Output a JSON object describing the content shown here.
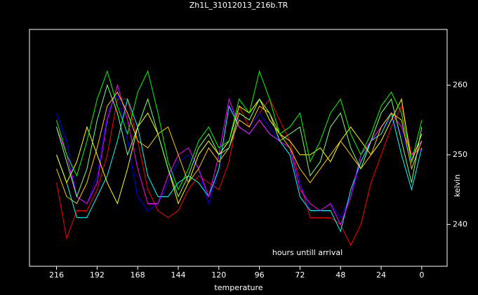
{
  "chart_data": {
    "type": "line",
    "title": "Zh1L_31012013_216b.TR",
    "xlabel": "temperature",
    "ylabel": "kelvin",
    "annotation": "hours untill arrival",
    "x": [
      216,
      210,
      204,
      198,
      192,
      186,
      180,
      174,
      168,
      162,
      156,
      150,
      144,
      138,
      132,
      126,
      120,
      114,
      108,
      102,
      96,
      90,
      84,
      78,
      72,
      66,
      60,
      54,
      48,
      42,
      36,
      30,
      24,
      18,
      12,
      6,
      0
    ],
    "xlim": [
      232,
      -15
    ],
    "xticks": [
      216,
      192,
      168,
      144,
      120,
      96,
      72,
      48,
      24,
      0
    ],
    "ylim": [
      234,
      268
    ],
    "yticks": [
      240,
      250,
      260
    ],
    "series": [
      {
        "color": "#ff0000",
        "values": [
          246,
          238,
          242,
          242,
          245,
          250,
          258,
          258,
          252,
          245,
          242,
          241,
          242,
          245,
          247,
          246,
          245,
          249,
          257,
          254,
          256,
          258,
          255,
          252,
          246,
          241,
          241,
          241,
          240,
          237,
          240,
          246,
          250,
          254,
          257,
          250,
          251
        ]
      },
      {
        "color": "#0000ff",
        "values": [
          256,
          252,
          244,
          243,
          247,
          256,
          259,
          252,
          244,
          242,
          243,
          246,
          249,
          250,
          248,
          243,
          248,
          257,
          255,
          254,
          256,
          254,
          252,
          251,
          246,
          242,
          242,
          243,
          241,
          244,
          249,
          252,
          254,
          255,
          253,
          249,
          251
        ]
      },
      {
        "color": "#00ffff",
        "values": [
          250,
          246,
          241,
          241,
          244,
          247,
          252,
          258,
          254,
          247,
          244,
          244,
          246,
          247,
          246,
          244,
          248,
          257,
          254,
          253,
          255,
          253,
          252,
          250,
          244,
          242,
          242,
          242,
          239,
          245,
          249,
          252,
          253,
          256,
          250,
          245,
          251
        ]
      },
      {
        "color": "#ff00ff",
        "values": [
          254,
          250,
          244,
          243,
          246,
          255,
          260,
          255,
          248,
          243,
          243,
          247,
          250,
          251,
          248,
          244,
          250,
          258,
          254,
          253,
          255,
          253,
          252,
          251,
          245,
          243,
          242,
          243,
          240,
          244,
          250,
          252,
          254,
          256,
          254,
          250,
          252
        ]
      },
      {
        "color": "#ffff00",
        "values": [
          250,
          246,
          249,
          254,
          250,
          246,
          243,
          248,
          254,
          256,
          253,
          248,
          243,
          246,
          250,
          252,
          250,
          252,
          257,
          256,
          258,
          255,
          253,
          252,
          250,
          250,
          251,
          249,
          252,
          254,
          252,
          250,
          252,
          255,
          258,
          249,
          253
        ]
      },
      {
        "color": "#ffc800",
        "values": [
          248,
          244,
          243,
          246,
          251,
          257,
          259,
          256,
          252,
          251,
          253,
          254,
          250,
          246,
          248,
          251,
          249,
          251,
          255,
          254,
          257,
          256,
          253,
          251,
          248,
          246,
          248,
          250,
          252,
          250,
          248,
          250,
          254,
          256,
          255,
          248,
          252
        ]
      },
      {
        "color": "#00ff00",
        "values": [
          255,
          250,
          247,
          252,
          258,
          262,
          257,
          253,
          259,
          262,
          256,
          249,
          245,
          248,
          252,
          254,
          251,
          252,
          258,
          256,
          262,
          258,
          253,
          254,
          256,
          249,
          252,
          256,
          258,
          253,
          250,
          253,
          257,
          259,
          256,
          249,
          255
        ]
      },
      {
        "color": "#80ff80",
        "values": [
          254,
          249,
          244,
          248,
          255,
          260,
          256,
          250,
          254,
          258,
          253,
          248,
          244,
          247,
          251,
          253,
          250,
          251,
          256,
          255,
          258,
          256,
          252,
          253,
          254,
          247,
          249,
          254,
          256,
          251,
          248,
          252,
          256,
          258,
          252,
          246,
          254
        ]
      }
    ]
  }
}
